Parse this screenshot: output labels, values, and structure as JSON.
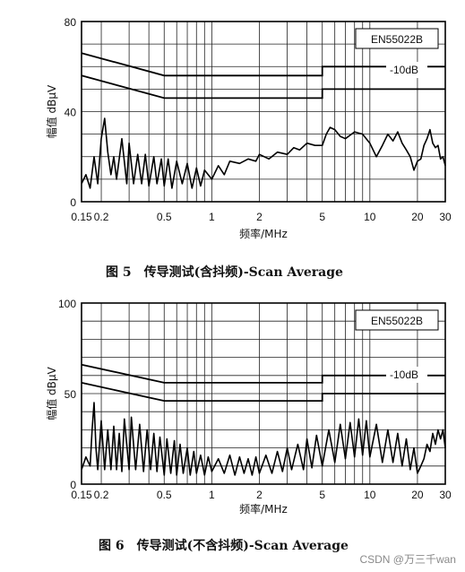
{
  "chart_data": [
    {
      "type": "line",
      "xscale": "log",
      "xlim": [
        0.15,
        30
      ],
      "ylim": [
        0,
        80
      ],
      "ylabel": "幅值 dBμV",
      "xlabel": "频率/MHz",
      "x_ticks": [
        "0.15",
        "0.2",
        "0.5",
        "1",
        "2",
        "5",
        "10",
        "20",
        "30"
      ],
      "y_ticks": [
        "0",
        "40",
        "80"
      ],
      "grid": true,
      "legend_box": "EN55022B",
      "annotation": "-10dB",
      "caption": "图 5　传导测试(含抖频)-Scan Average",
      "limit_lines": [
        {
          "x": [
            0.15,
            0.5,
            0.5,
            5,
            5,
            30
          ],
          "y": [
            66,
            56,
            56,
            56,
            60,
            60
          ]
        },
        {
          "x": [
            0.15,
            0.5,
            0.5,
            5,
            5,
            30
          ],
          "y": [
            56,
            46,
            46,
            46,
            50,
            50
          ]
        }
      ],
      "trace": {
        "x": [
          0.15,
          0.16,
          0.17,
          0.18,
          0.19,
          0.2,
          0.21,
          0.22,
          0.23,
          0.24,
          0.25,
          0.27,
          0.29,
          0.3,
          0.32,
          0.34,
          0.36,
          0.38,
          0.4,
          0.43,
          0.45,
          0.48,
          0.5,
          0.53,
          0.56,
          0.6,
          0.65,
          0.7,
          0.75,
          0.8,
          0.85,
          0.9,
          1.0,
          1.1,
          1.2,
          1.3,
          1.5,
          1.7,
          1.9,
          2.0,
          2.3,
          2.6,
          3.0,
          3.3,
          3.6,
          4.0,
          4.5,
          5.0,
          5.3,
          5.6,
          6.0,
          6.5,
          7.0,
          8.0,
          9.0,
          10.0,
          11.0,
          12.0,
          13.0,
          14.0,
          15.0,
          16.0,
          17.0,
          18.0,
          19.0,
          20.0,
          21.0,
          22.0,
          23.0,
          24.0,
          25.0,
          26.0,
          27.0,
          28.0,
          29.0,
          30.0
        ],
        "y": [
          8,
          12,
          6,
          20,
          8,
          28,
          37,
          22,
          12,
          20,
          10,
          28,
          8,
          26,
          8,
          21,
          8,
          21,
          7,
          20,
          8,
          19,
          7,
          19,
          6,
          18,
          8,
          17,
          6,
          15,
          7,
          14,
          10,
          16,
          12,
          18,
          17,
          19,
          18,
          21,
          19,
          22,
          21,
          24,
          23,
          26,
          25,
          25,
          30,
          33,
          32,
          29,
          28,
          31,
          30,
          26,
          20,
          25,
          30,
          27,
          31,
          26,
          23,
          20,
          14,
          18,
          19,
          25,
          28,
          32,
          26,
          24,
          25,
          19,
          20,
          16
        ]
      }
    },
    {
      "type": "line",
      "xscale": "log",
      "xlim": [
        0.15,
        30
      ],
      "ylim": [
        0,
        100
      ],
      "ylabel": "幅值 dBμV",
      "xlabel": "频率/MHz",
      "x_ticks": [
        "0.15",
        "0.2",
        "0.5",
        "1",
        "2",
        "5",
        "10",
        "20",
        "30"
      ],
      "y_ticks": [
        "0",
        "50",
        "100"
      ],
      "grid": true,
      "legend_box": "EN55022B",
      "annotation": "-10dB",
      "caption": "图 6　传导测试(不含抖频)-Scan Average",
      "limit_lines": [
        {
          "x": [
            0.15,
            0.5,
            0.5,
            5,
            5,
            30
          ],
          "y": [
            66,
            56,
            56,
            56,
            60,
            60
          ]
        },
        {
          "x": [
            0.15,
            0.5,
            0.5,
            5,
            5,
            30
          ],
          "y": [
            56,
            46,
            46,
            46,
            50,
            50
          ]
        }
      ],
      "trace": {
        "x": [
          0.15,
          0.16,
          0.17,
          0.175,
          0.18,
          0.185,
          0.19,
          0.2,
          0.21,
          0.22,
          0.23,
          0.24,
          0.25,
          0.26,
          0.27,
          0.28,
          0.3,
          0.31,
          0.33,
          0.35,
          0.37,
          0.39,
          0.41,
          0.43,
          0.45,
          0.47,
          0.5,
          0.52,
          0.55,
          0.58,
          0.6,
          0.63,
          0.66,
          0.7,
          0.73,
          0.77,
          0.8,
          0.85,
          0.9,
          0.95,
          1.0,
          1.1,
          1.2,
          1.3,
          1.4,
          1.5,
          1.6,
          1.7,
          1.8,
          1.9,
          2.0,
          2.2,
          2.4,
          2.6,
          2.8,
          3.0,
          3.2,
          3.5,
          3.8,
          4.0,
          4.3,
          4.6,
          5.0,
          5.5,
          6.0,
          6.5,
          7.0,
          7.5,
          8.0,
          8.5,
          9.0,
          9.5,
          10.0,
          11.0,
          12.0,
          13.0,
          14.0,
          15.0,
          16.0,
          17.0,
          18.0,
          19.0,
          20.0,
          21.0,
          22.0,
          23.0,
          24.0,
          25.0,
          26.0,
          27.0,
          28.0,
          29.0,
          30.0
        ],
        "y": [
          8,
          15,
          10,
          30,
          45,
          20,
          8,
          35,
          8,
          30,
          8,
          32,
          8,
          28,
          7,
          36,
          8,
          37,
          8,
          33,
          7,
          30,
          8,
          28,
          7,
          26,
          5,
          25,
          6,
          24,
          5,
          22,
          6,
          20,
          5,
          18,
          6,
          16,
          5,
          15,
          7,
          14,
          6,
          16,
          5,
          15,
          6,
          14,
          5,
          15,
          6,
          16,
          6,
          18,
          7,
          20,
          8,
          22,
          8,
          25,
          9,
          27,
          10,
          30,
          12,
          33,
          14,
          34,
          15,
          36,
          16,
          35,
          15,
          33,
          12,
          30,
          12,
          28,
          10,
          25,
          8,
          20,
          6,
          10,
          14,
          22,
          18,
          28,
          22,
          30,
          25,
          30,
          20
        ]
      }
    }
  ],
  "watermark": "CSDN @万三千wan"
}
